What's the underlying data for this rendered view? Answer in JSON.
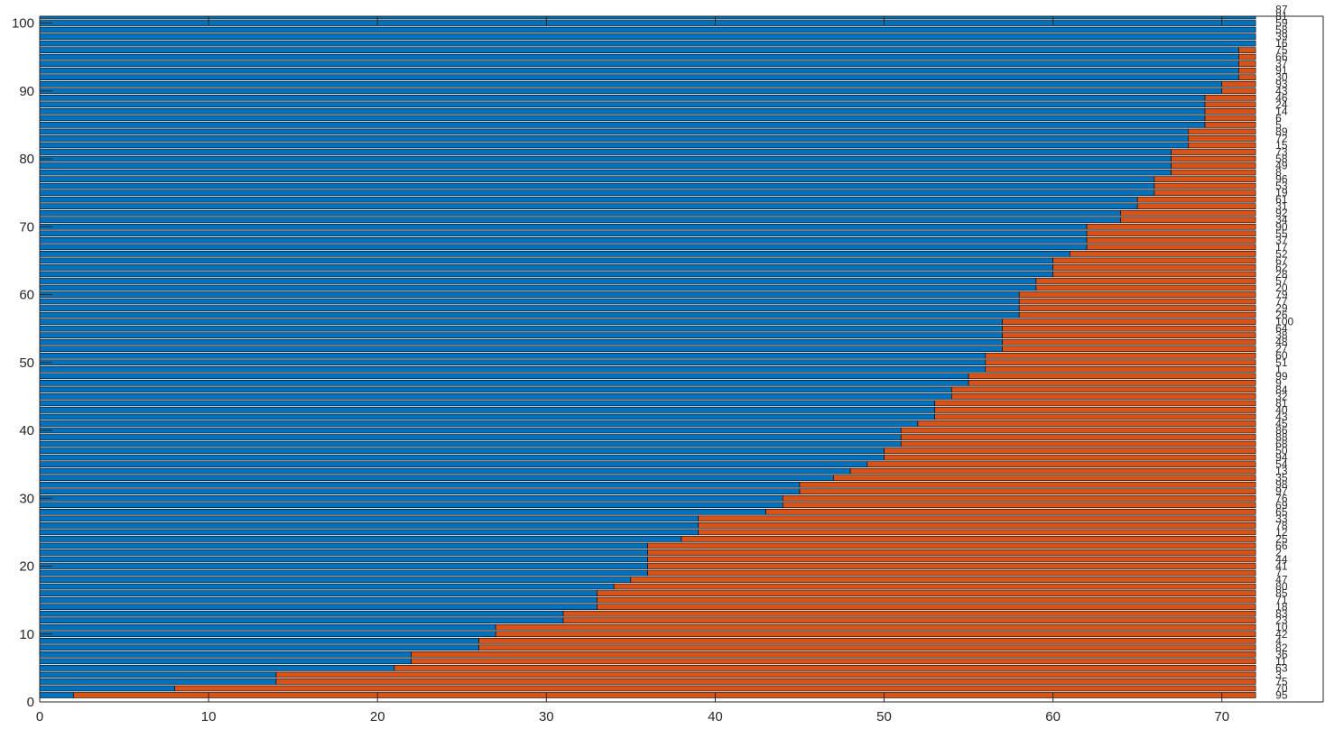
{
  "chart_data": {
    "type": "bar",
    "orientation": "horizontal",
    "stacked": true,
    "xlim": [
      0,
      76
    ],
    "ylim": [
      0,
      101
    ],
    "xticks": [
      0,
      10,
      20,
      30,
      40,
      50,
      60,
      70
    ],
    "yticks": [
      0,
      10,
      20,
      30,
      40,
      50,
      60,
      70,
      80,
      90,
      100
    ],
    "grid": false,
    "legend": "none",
    "total": 72,
    "colors": {
      "series1": "#0072BD",
      "series2": "#D95319",
      "axis": "#262626"
    },
    "rows": [
      {
        "y": 1,
        "label": "95",
        "blue": 2
      },
      {
        "y": 2,
        "label": "70",
        "blue": 8
      },
      {
        "y": 3,
        "label": "75",
        "blue": 14
      },
      {
        "y": 4,
        "label": "3",
        "blue": 14
      },
      {
        "y": 5,
        "label": "63",
        "blue": 21
      },
      {
        "y": 6,
        "label": "11",
        "blue": 22
      },
      {
        "y": 7,
        "label": "36",
        "blue": 22
      },
      {
        "y": 8,
        "label": "82",
        "blue": 26
      },
      {
        "y": 9,
        "label": "4",
        "blue": 26
      },
      {
        "y": 10,
        "label": "42",
        "blue": 27
      },
      {
        "y": 11,
        "label": "10",
        "blue": 27
      },
      {
        "y": 12,
        "label": "23",
        "blue": 31
      },
      {
        "y": 13,
        "label": "83",
        "blue": 31
      },
      {
        "y": 14,
        "label": "18",
        "blue": 33
      },
      {
        "y": 15,
        "label": "71",
        "blue": 33
      },
      {
        "y": 16,
        "label": "85",
        "blue": 33
      },
      {
        "y": 17,
        "label": "80",
        "blue": 34
      },
      {
        "y": 18,
        "label": "47",
        "blue": 35
      },
      {
        "y": 19,
        "label": "7",
        "blue": 36
      },
      {
        "y": 20,
        "label": "41",
        "blue": 36
      },
      {
        "y": 21,
        "label": "44",
        "blue": 36
      },
      {
        "y": 22,
        "label": "2",
        "blue": 36
      },
      {
        "y": 23,
        "label": "66",
        "blue": 36
      },
      {
        "y": 24,
        "label": "25",
        "blue": 38
      },
      {
        "y": 25,
        "label": "12",
        "blue": 39
      },
      {
        "y": 26,
        "label": "78",
        "blue": 39
      },
      {
        "y": 27,
        "label": "33",
        "blue": 39
      },
      {
        "y": 28,
        "label": "65",
        "blue": 43
      },
      {
        "y": 29,
        "label": "69",
        "blue": 44
      },
      {
        "y": 30,
        "label": "76",
        "blue": 44
      },
      {
        "y": 31,
        "label": "97",
        "blue": 45
      },
      {
        "y": 32,
        "label": "98",
        "blue": 45
      },
      {
        "y": 33,
        "label": "35",
        "blue": 47
      },
      {
        "y": 34,
        "label": "13",
        "blue": 48
      },
      {
        "y": 35,
        "label": "54",
        "blue": 49
      },
      {
        "y": 36,
        "label": "94",
        "blue": 50
      },
      {
        "y": 37,
        "label": "50",
        "blue": 50
      },
      {
        "y": 38,
        "label": "68",
        "blue": 51
      },
      {
        "y": 39,
        "label": "88",
        "blue": 51
      },
      {
        "y": 40,
        "label": "86",
        "blue": 51
      },
      {
        "y": 41,
        "label": "45",
        "blue": 52
      },
      {
        "y": 42,
        "label": "43",
        "blue": 53
      },
      {
        "y": 43,
        "label": "40",
        "blue": 53
      },
      {
        "y": 44,
        "label": "81",
        "blue": 53
      },
      {
        "y": 45,
        "label": "32",
        "blue": 54
      },
      {
        "y": 46,
        "label": "84",
        "blue": 54
      },
      {
        "y": 47,
        "label": "9",
        "blue": 55
      },
      {
        "y": 48,
        "label": "99",
        "blue": 55
      },
      {
        "y": 49,
        "label": "1",
        "blue": 56
      },
      {
        "y": 50,
        "label": "51",
        "blue": 56
      },
      {
        "y": 51,
        "label": "60",
        "blue": 56
      },
      {
        "y": 52,
        "label": "27",
        "blue": 57
      },
      {
        "y": 53,
        "label": "48",
        "blue": 57
      },
      {
        "y": 54,
        "label": "38",
        "blue": 57
      },
      {
        "y": 55,
        "label": "64",
        "blue": 57
      },
      {
        "y": 56,
        "label": "100",
        "blue": 57
      },
      {
        "y": 57,
        "label": "26",
        "blue": 58
      },
      {
        "y": 58,
        "label": "29",
        "blue": 58
      },
      {
        "y": 59,
        "label": "77",
        "blue": 58
      },
      {
        "y": 60,
        "label": "79",
        "blue": 58
      },
      {
        "y": 61,
        "label": "20",
        "blue": 59
      },
      {
        "y": 62,
        "label": "57",
        "blue": 59
      },
      {
        "y": 63,
        "label": "28",
        "blue": 60
      },
      {
        "y": 64,
        "label": "62",
        "blue": 60
      },
      {
        "y": 65,
        "label": "67",
        "blue": 60
      },
      {
        "y": 66,
        "label": "52",
        "blue": 61
      },
      {
        "y": 67,
        "label": "17",
        "blue": 62
      },
      {
        "y": 68,
        "label": "37",
        "blue": 62
      },
      {
        "y": 69,
        "label": "55",
        "blue": 62
      },
      {
        "y": 70,
        "label": "90",
        "blue": 62
      },
      {
        "y": 71,
        "label": "34",
        "blue": 64
      },
      {
        "y": 72,
        "label": "92",
        "blue": 64
      },
      {
        "y": 73,
        "label": "31",
        "blue": 65
      },
      {
        "y": 74,
        "label": "61",
        "blue": 65
      },
      {
        "y": 75,
        "label": "19",
        "blue": 66
      },
      {
        "y": 76,
        "label": "53",
        "blue": 66
      },
      {
        "y": 77,
        "label": "96",
        "blue": 66
      },
      {
        "y": 78,
        "label": "8",
        "blue": 67
      },
      {
        "y": 79,
        "label": "49",
        "blue": 67
      },
      {
        "y": 80,
        "label": "58",
        "blue": 67
      },
      {
        "y": 81,
        "label": "73",
        "blue": 67
      },
      {
        "y": 82,
        "label": "15",
        "blue": 68
      },
      {
        "y": 83,
        "label": "72",
        "blue": 68
      },
      {
        "y": 84,
        "label": "89",
        "blue": 68
      },
      {
        "y": 85,
        "label": "5",
        "blue": 69
      },
      {
        "y": 86,
        "label": "6",
        "blue": 69
      },
      {
        "y": 87,
        "label": "14",
        "blue": 69
      },
      {
        "y": 88,
        "label": "24",
        "blue": 69
      },
      {
        "y": 89,
        "label": "46",
        "blue": 69
      },
      {
        "y": 90,
        "label": "43",
        "blue": 70
      },
      {
        "y": 91,
        "label": "93",
        "blue": 70
      },
      {
        "y": 92,
        "label": "30",
        "blue": 71
      },
      {
        "y": 93,
        "label": "91",
        "blue": 71
      },
      {
        "y": 94,
        "label": "37",
        "blue": 71
      },
      {
        "y": 95,
        "label": "66",
        "blue": 71
      },
      {
        "y": 96,
        "label": "75",
        "blue": 71
      },
      {
        "y": 97,
        "label": "16",
        "blue": 72
      },
      {
        "y": 98,
        "label": "39",
        "blue": 72
      },
      {
        "y": 99,
        "label": "58",
        "blue": 72
      },
      {
        "y": 100,
        "label": "59",
        "blue": 72
      },
      {
        "y": 101,
        "label": "81",
        "blue": 72
      },
      {
        "y": 102,
        "label": "87",
        "blue": 72
      }
    ]
  }
}
